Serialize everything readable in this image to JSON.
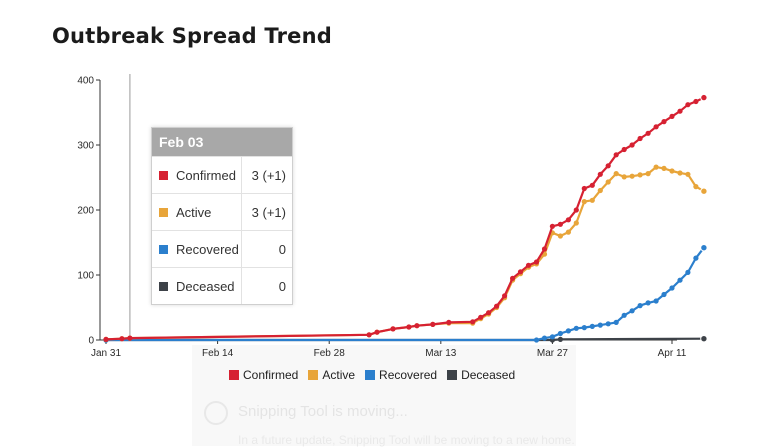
{
  "title": "Outbreak Spread Trend",
  "chart_data": {
    "type": "line",
    "x_start": "2020-01-31",
    "x_end": "2020-04-11",
    "x_ticks": [
      {
        "label": "Jan 31",
        "date": "2020-01-31"
      },
      {
        "label": "Feb 14",
        "date": "2020-02-14"
      },
      {
        "label": "Feb 28",
        "date": "2020-02-28"
      },
      {
        "label": "Mar 13",
        "date": "2020-03-13"
      },
      {
        "label": "Mar 27",
        "date": "2020-03-27"
      },
      {
        "label": "Apr 11",
        "date": "2020-04-11"
      }
    ],
    "ylim": [
      0,
      400
    ],
    "y_ticks": [
      0,
      100,
      200,
      300,
      400
    ],
    "grid": false,
    "series": [
      {
        "name": "Confirmed",
        "color": "#d62132",
        "points": [
          [
            "2020-01-31",
            1
          ],
          [
            "2020-02-02",
            2
          ],
          [
            "2020-02-03",
            3
          ],
          [
            "2020-03-04",
            8
          ],
          [
            "2020-03-05",
            12
          ],
          [
            "2020-03-07",
            17
          ],
          [
            "2020-03-09",
            20
          ],
          [
            "2020-03-10",
            22
          ],
          [
            "2020-03-12",
            24
          ],
          [
            "2020-03-14",
            27
          ],
          [
            "2020-03-17",
            28
          ],
          [
            "2020-03-18",
            35
          ],
          [
            "2020-03-19",
            42
          ],
          [
            "2020-03-20",
            52
          ],
          [
            "2020-03-21",
            68
          ],
          [
            "2020-03-22",
            95
          ],
          [
            "2020-03-23",
            105
          ],
          [
            "2020-03-24",
            115
          ],
          [
            "2020-03-25",
            120
          ],
          [
            "2020-03-26",
            140
          ],
          [
            "2020-03-27",
            175
          ],
          [
            "2020-03-28",
            178
          ],
          [
            "2020-03-29",
            185
          ],
          [
            "2020-03-30",
            200
          ],
          [
            "2020-03-31",
            233
          ],
          [
            "2020-04-01",
            238
          ],
          [
            "2020-04-02",
            255
          ],
          [
            "2020-04-03",
            268
          ],
          [
            "2020-04-04",
            285
          ],
          [
            "2020-04-05",
            293
          ],
          [
            "2020-04-06",
            300
          ],
          [
            "2020-04-07",
            310
          ],
          [
            "2020-04-08",
            318
          ],
          [
            "2020-04-09",
            328
          ],
          [
            "2020-04-10",
            336
          ],
          [
            "2020-04-11",
            344
          ],
          [
            "2020-04-12",
            352
          ],
          [
            "2020-04-13",
            362
          ],
          [
            "2020-04-14",
            367
          ],
          [
            "2020-04-15",
            373
          ]
        ]
      },
      {
        "name": "Active",
        "color": "#e8a53a",
        "points": [
          [
            "2020-01-31",
            1
          ],
          [
            "2020-02-02",
            2
          ],
          [
            "2020-02-03",
            3
          ],
          [
            "2020-03-04",
            8
          ],
          [
            "2020-03-05",
            12
          ],
          [
            "2020-03-07",
            17
          ],
          [
            "2020-03-09",
            20
          ],
          [
            "2020-03-10",
            22
          ],
          [
            "2020-03-12",
            24
          ],
          [
            "2020-03-14",
            26
          ],
          [
            "2020-03-17",
            26
          ],
          [
            "2020-03-18",
            33
          ],
          [
            "2020-03-19",
            40
          ],
          [
            "2020-03-20",
            50
          ],
          [
            "2020-03-21",
            65
          ],
          [
            "2020-03-22",
            92
          ],
          [
            "2020-03-23",
            102
          ],
          [
            "2020-03-24",
            112
          ],
          [
            "2020-03-25",
            117
          ],
          [
            "2020-03-26",
            132
          ],
          [
            "2020-03-27",
            165
          ],
          [
            "2020-03-28",
            160
          ],
          [
            "2020-03-29",
            166
          ],
          [
            "2020-03-30",
            180
          ],
          [
            "2020-03-31",
            213
          ],
          [
            "2020-04-01",
            215
          ],
          [
            "2020-04-02",
            230
          ],
          [
            "2020-04-03",
            243
          ],
          [
            "2020-04-04",
            256
          ],
          [
            "2020-04-05",
            251
          ],
          [
            "2020-04-06",
            252
          ],
          [
            "2020-04-07",
            254
          ],
          [
            "2020-04-08",
            256
          ],
          [
            "2020-04-09",
            266
          ],
          [
            "2020-04-10",
            264
          ],
          [
            "2020-04-11",
            260
          ],
          [
            "2020-04-12",
            257
          ],
          [
            "2020-04-13",
            255
          ],
          [
            "2020-04-14",
            236
          ],
          [
            "2020-04-15",
            229
          ]
        ]
      },
      {
        "name": "Recovered",
        "color": "#2b7fcd",
        "points": [
          [
            "2020-01-31",
            0
          ],
          [
            "2020-03-25",
            0
          ],
          [
            "2020-03-26",
            3
          ],
          [
            "2020-03-27",
            5
          ],
          [
            "2020-03-28",
            10
          ],
          [
            "2020-03-29",
            14
          ],
          [
            "2020-03-30",
            18
          ],
          [
            "2020-03-31",
            19
          ],
          [
            "2020-04-01",
            21
          ],
          [
            "2020-04-02",
            23
          ],
          [
            "2020-04-03",
            25
          ],
          [
            "2020-04-04",
            27
          ],
          [
            "2020-04-05",
            38
          ],
          [
            "2020-04-06",
            45
          ],
          [
            "2020-04-07",
            53
          ],
          [
            "2020-04-08",
            57
          ],
          [
            "2020-04-09",
            60
          ],
          [
            "2020-04-10",
            70
          ],
          [
            "2020-04-11",
            80
          ],
          [
            "2020-04-12",
            92
          ],
          [
            "2020-04-13",
            104
          ],
          [
            "2020-04-14",
            126
          ],
          [
            "2020-04-15",
            142
          ]
        ]
      },
      {
        "name": "Deceased",
        "color": "#3d4248",
        "points": [
          [
            "2020-01-31",
            0
          ],
          [
            "2020-03-27",
            0
          ],
          [
            "2020-03-28",
            1
          ],
          [
            "2020-04-15",
            2
          ]
        ]
      }
    ]
  },
  "tooltip": {
    "date": "Feb 03",
    "rows": [
      {
        "name": "Confirmed",
        "color": "#d62132",
        "value": "3 (+1)"
      },
      {
        "name": "Active",
        "color": "#e8a53a",
        "value": "3 (+1)"
      },
      {
        "name": "Recovered",
        "color": "#2b7fcd",
        "value": "0"
      },
      {
        "name": "Deceased",
        "color": "#3d4248",
        "value": "0"
      }
    ]
  },
  "legend": [
    {
      "name": "Confirmed",
      "color": "#d62132"
    },
    {
      "name": "Active",
      "color": "#e8a53a"
    },
    {
      "name": "Recovered",
      "color": "#2b7fcd"
    },
    {
      "name": "Deceased",
      "color": "#3d4248"
    }
  ],
  "background_notification": {
    "title": "Snipping Tool is moving...",
    "body": "In a future update, Snipping Tool will be moving to a new home."
  }
}
